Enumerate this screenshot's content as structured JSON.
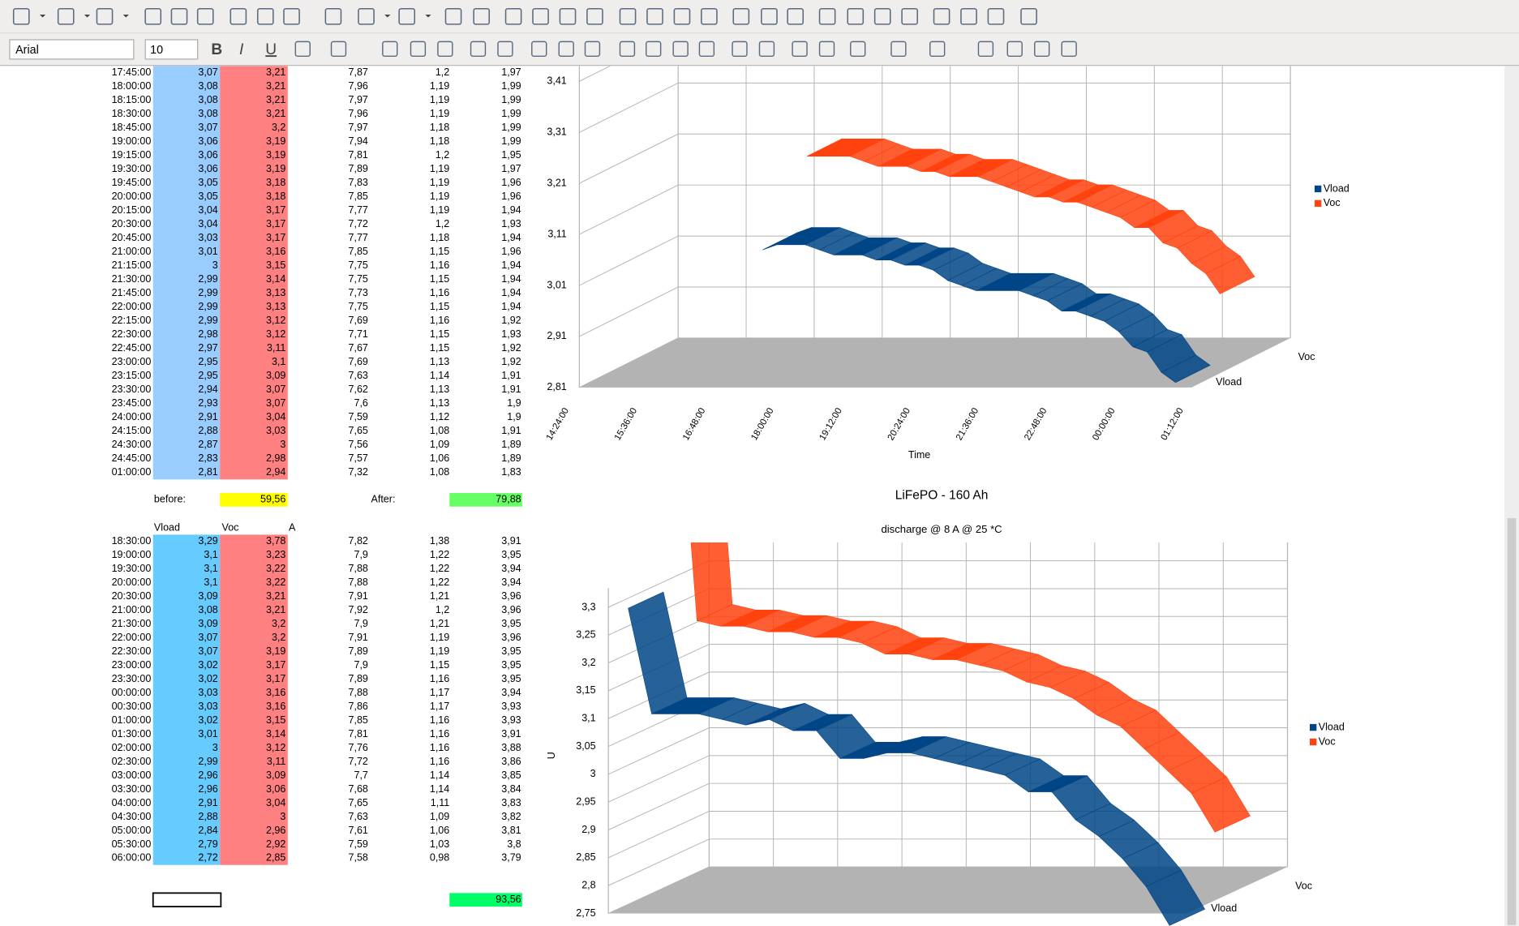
{
  "toolbar": {
    "font": "Arial",
    "size": "10"
  },
  "table1": {
    "rows": [
      [
        "17:45:00",
        "3,07",
        "3,21",
        "7,87",
        "1,2",
        "1,97"
      ],
      [
        "18:00:00",
        "3,08",
        "3,21",
        "7,96",
        "1,19",
        "1,99"
      ],
      [
        "18:15:00",
        "3,08",
        "3,21",
        "7,97",
        "1,19",
        "1,99"
      ],
      [
        "18:30:00",
        "3,08",
        "3,21",
        "7,96",
        "1,19",
        "1,99"
      ],
      [
        "18:45:00",
        "3,07",
        "3,2",
        "7,97",
        "1,18",
        "1,99"
      ],
      [
        "19:00:00",
        "3,06",
        "3,19",
        "7,94",
        "1,18",
        "1,99"
      ],
      [
        "19:15:00",
        "3,06",
        "3,19",
        "7,81",
        "1,2",
        "1,95"
      ],
      [
        "19:30:00",
        "3,06",
        "3,19",
        "7,89",
        "1,19",
        "1,97"
      ],
      [
        "19:45:00",
        "3,05",
        "3,18",
        "7,83",
        "1,19",
        "1,96"
      ],
      [
        "20:00:00",
        "3,05",
        "3,18",
        "7,85",
        "1,19",
        "1,96"
      ],
      [
        "20:15:00",
        "3,04",
        "3,17",
        "7,77",
        "1,19",
        "1,94"
      ],
      [
        "20:30:00",
        "3,04",
        "3,17",
        "7,72",
        "1,2",
        "1,93"
      ],
      [
        "20:45:00",
        "3,03",
        "3,17",
        "7,77",
        "1,18",
        "1,94"
      ],
      [
        "21:00:00",
        "3,01",
        "3,16",
        "7,85",
        "1,15",
        "1,96"
      ],
      [
        "21:15:00",
        "3",
        "3,15",
        "7,75",
        "1,16",
        "1,94"
      ],
      [
        "21:30:00",
        "2,99",
        "3,14",
        "7,75",
        "1,15",
        "1,94"
      ],
      [
        "21:45:00",
        "2,99",
        "3,13",
        "7,73",
        "1,16",
        "1,94"
      ],
      [
        "22:00:00",
        "2,99",
        "3,13",
        "7,75",
        "1,15",
        "1,94"
      ],
      [
        "22:15:00",
        "2,99",
        "3,12",
        "7,69",
        "1,16",
        "1,92"
      ],
      [
        "22:30:00",
        "2,98",
        "3,12",
        "7,71",
        "1,15",
        "1,93"
      ],
      [
        "22:45:00",
        "2,97",
        "3,11",
        "7,67",
        "1,15",
        "1,92"
      ],
      [
        "23:00:00",
        "2,95",
        "3,1",
        "7,69",
        "1,13",
        "1,92"
      ],
      [
        "23:15:00",
        "2,95",
        "3,09",
        "7,63",
        "1,14",
        "1,91"
      ],
      [
        "23:30:00",
        "2,94",
        "3,07",
        "7,62",
        "1,13",
        "1,91"
      ],
      [
        "23:45:00",
        "2,93",
        "3,07",
        "7,6",
        "1,13",
        "1,9"
      ],
      [
        "24:00:00",
        "2,91",
        "3,04",
        "7,59",
        "1,12",
        "1,9"
      ],
      [
        "24:15:00",
        "2,88",
        "3,03",
        "7,65",
        "1,08",
        "1,91"
      ],
      [
        "24:30:00",
        "2,87",
        "3",
        "7,56",
        "1,09",
        "1,89"
      ],
      [
        "24:45:00",
        "2,83",
        "2,98",
        "7,57",
        "1,06",
        "1,89"
      ],
      [
        "01:00:00",
        "2,81",
        "2,94",
        "7,32",
        "1,08",
        "1,83"
      ]
    ]
  },
  "summary": {
    "before_label": "before:",
    "before": "59,56",
    "after_label": "After:",
    "after": "79,88"
  },
  "table2": {
    "headers": [
      "Vload",
      "Voc",
      "A"
    ],
    "rows": [
      [
        "18:30:00",
        "3,29",
        "3,78",
        "7,82",
        "1,38",
        "3,91"
      ],
      [
        "19:00:00",
        "3,1",
        "3,23",
        "7,9",
        "1,22",
        "3,95"
      ],
      [
        "19:30:00",
        "3,1",
        "3,22",
        "7,88",
        "1,22",
        "3,94"
      ],
      [
        "20:00:00",
        "3,1",
        "3,22",
        "7,88",
        "1,22",
        "3,94"
      ],
      [
        "20:30:00",
        "3,09",
        "3,21",
        "7,91",
        "1,21",
        "3,96"
      ],
      [
        "21:00:00",
        "3,08",
        "3,21",
        "7,92",
        "1,2",
        "3,96"
      ],
      [
        "21:30:00",
        "3,09",
        "3,2",
        "7,9",
        "1,21",
        "3,95"
      ],
      [
        "22:00:00",
        "3,07",
        "3,2",
        "7,91",
        "1,19",
        "3,96"
      ],
      [
        "22:30:00",
        "3,07",
        "3,19",
        "7,89",
        "1,19",
        "3,95"
      ],
      [
        "23:00:00",
        "3,02",
        "3,17",
        "7,9",
        "1,15",
        "3,95"
      ],
      [
        "23:30:00",
        "3,02",
        "3,17",
        "7,89",
        "1,16",
        "3,95"
      ],
      [
        "00:00:00",
        "3,03",
        "3,16",
        "7,88",
        "1,17",
        "3,94"
      ],
      [
        "00:30:00",
        "3,03",
        "3,16",
        "7,86",
        "1,17",
        "3,93"
      ],
      [
        "01:00:00",
        "3,02",
        "3,15",
        "7,85",
        "1,16",
        "3,93"
      ],
      [
        "01:30:00",
        "3,01",
        "3,14",
        "7,81",
        "1,16",
        "3,91"
      ],
      [
        "02:00:00",
        "3",
        "3,12",
        "7,76",
        "1,16",
        "3,88"
      ],
      [
        "02:30:00",
        "2,99",
        "3,11",
        "7,72",
        "1,16",
        "3,86"
      ],
      [
        "03:00:00",
        "2,96",
        "3,09",
        "7,7",
        "1,14",
        "3,85"
      ],
      [
        "03:30:00",
        "2,96",
        "3,06",
        "7,68",
        "1,14",
        "3,84"
      ],
      [
        "04:00:00",
        "2,91",
        "3,04",
        "7,65",
        "1,11",
        "3,83"
      ],
      [
        "04:30:00",
        "2,88",
        "3",
        "7,63",
        "1,09",
        "3,82"
      ],
      [
        "05:00:00",
        "2,84",
        "2,96",
        "7,61",
        "1,06",
        "3,81"
      ],
      [
        "05:30:00",
        "2,79",
        "2,92",
        "7,59",
        "1,03",
        "3,8"
      ],
      [
        "06:00:00",
        "2,72",
        "2,85",
        "7,58",
        "0,98",
        "3,79"
      ]
    ]
  },
  "final": "93,56",
  "chart1": {
    "yticks": [
      "3,41",
      "3,31",
      "3,21",
      "3,11",
      "3,01",
      "2,91",
      "2,81"
    ],
    "xticks": [
      "14:24:00",
      "15:36:00",
      "16:48:00",
      "18:00:00",
      "19:12:00",
      "20:24:00",
      "21:36:00",
      "22:48:00",
      "00:00:00",
      "01:12:00"
    ],
    "x_label": "Time",
    "depth_labels": [
      "Voc",
      "Vload"
    ],
    "legend": [
      "Vload",
      "Voc"
    ],
    "colors": [
      "#004586",
      "#ff420e"
    ]
  },
  "chart2": {
    "title": "LiFePO - 160 Ah",
    "subtitle": "discharge  @ 8 A @ 25 *C",
    "y_label": "U",
    "yticks": [
      "3,3",
      "3,25",
      "3,2",
      "3,15",
      "3,1",
      "3,05",
      "3",
      "2,95",
      "2,9",
      "2,85",
      "2,8",
      "2,75"
    ],
    "depth_labels": [
      "Voc",
      "Vload"
    ],
    "legend": [
      "Vload",
      "Voc"
    ],
    "colors": [
      "#004586",
      "#ff420e"
    ]
  }
}
